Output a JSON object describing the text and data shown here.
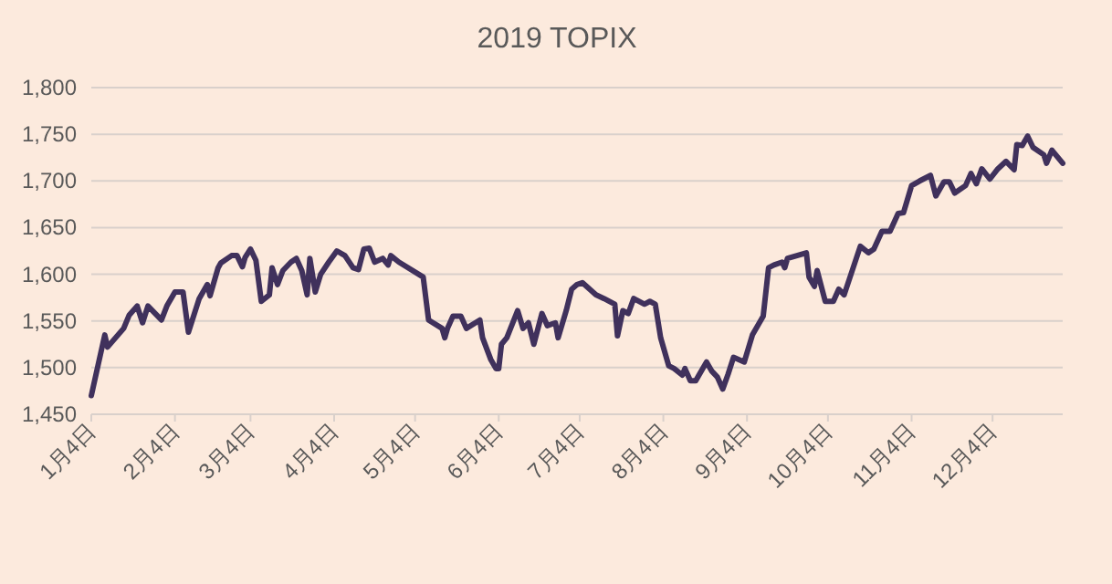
{
  "chart_data": {
    "type": "line",
    "title": "2019 TOPIX",
    "grid": "y",
    "marker": "none",
    "line_style": "solid",
    "xlim": [
      "2019-01-04",
      "2019-12-30"
    ],
    "ylim": [
      1450,
      1800
    ],
    "yticks": [
      {
        "value": 1450,
        "label": "1,450"
      },
      {
        "value": 1500,
        "label": "1,500"
      },
      {
        "value": 1550,
        "label": "1,550"
      },
      {
        "value": 1600,
        "label": "1,600"
      },
      {
        "value": 1650,
        "label": "1,650"
      },
      {
        "value": 1700,
        "label": "1,700"
      },
      {
        "value": 1750,
        "label": "1,750"
      },
      {
        "value": 1800,
        "label": "1,800"
      }
    ],
    "xticks": [
      {
        "value": "2019-01-04",
        "label": "1月4日"
      },
      {
        "value": "2019-02-04",
        "label": "2月4日"
      },
      {
        "value": "2019-03-04",
        "label": "3月4日"
      },
      {
        "value": "2019-04-04",
        "label": "4月4日"
      },
      {
        "value": "2019-05-04",
        "label": "5月4日"
      },
      {
        "value": "2019-06-04",
        "label": "6月4日"
      },
      {
        "value": "2019-07-04",
        "label": "7月4日"
      },
      {
        "value": "2019-08-04",
        "label": "8月4日"
      },
      {
        "value": "2019-09-04",
        "label": "9月4日"
      },
      {
        "value": "2019-10-04",
        "label": "10月4日"
      },
      {
        "value": "2019-11-04",
        "label": "11月4日"
      },
      {
        "value": "2019-12-04",
        "label": "12月4日"
      }
    ],
    "x": [
      "2019-01-04",
      "2019-01-07",
      "2019-01-09",
      "2019-01-10",
      "2019-01-13",
      "2019-01-16",
      "2019-01-18",
      "2019-01-21",
      "2019-01-23",
      "2019-01-25",
      "2019-01-30",
      "2019-02-01",
      "2019-02-04",
      "2019-02-07",
      "2019-02-09",
      "2019-02-13",
      "2019-02-16",
      "2019-02-17",
      "2019-02-20",
      "2019-02-21",
      "2019-02-25",
      "2019-02-27",
      "2019-03-01",
      "2019-03-02",
      "2019-03-04",
      "2019-03-06",
      "2019-03-08",
      "2019-03-11",
      "2019-03-12",
      "2019-03-14",
      "2019-03-16",
      "2019-03-19",
      "2019-03-21",
      "2019-03-23",
      "2019-03-25",
      "2019-03-26",
      "2019-03-28",
      "2019-03-30",
      "2019-04-02",
      "2019-04-05",
      "2019-04-08",
      "2019-04-11",
      "2019-04-13",
      "2019-04-15",
      "2019-04-17",
      "2019-04-19",
      "2019-04-22",
      "2019-04-24",
      "2019-04-25",
      "2019-04-28",
      "2019-05-07",
      "2019-05-09",
      "2019-05-14",
      "2019-05-15",
      "2019-05-16",
      "2019-05-18",
      "2019-05-21",
      "2019-05-23",
      "2019-05-28",
      "2019-05-29",
      "2019-06-01",
      "2019-06-03",
      "2019-06-04",
      "2019-06-05",
      "2019-06-07",
      "2019-06-11",
      "2019-06-13",
      "2019-06-15",
      "2019-06-17",
      "2019-06-20",
      "2019-06-22",
      "2019-06-25",
      "2019-06-26",
      "2019-06-29",
      "2019-07-01",
      "2019-07-03",
      "2019-07-05",
      "2019-07-10",
      "2019-07-13",
      "2019-07-17",
      "2019-07-18",
      "2019-07-20",
      "2019-07-22",
      "2019-07-24",
      "2019-07-28",
      "2019-07-30",
      "2019-08-01",
      "2019-08-03",
      "2019-08-06",
      "2019-08-08",
      "2019-08-11",
      "2019-08-12",
      "2019-08-14",
      "2019-08-16",
      "2019-08-20",
      "2019-08-22",
      "2019-08-24",
      "2019-08-26",
      "2019-08-28",
      "2019-08-30",
      "2019-09-03",
      "2019-09-06",
      "2019-09-10",
      "2019-09-12",
      "2019-09-14",
      "2019-09-17",
      "2019-09-18",
      "2019-09-19",
      "2019-09-26",
      "2019-09-27",
      "2019-09-29",
      "2019-09-30",
      "2019-10-03",
      "2019-10-06",
      "2019-10-08",
      "2019-10-10",
      "2019-10-16",
      "2019-10-19",
      "2019-10-21",
      "2019-10-24",
      "2019-10-27",
      "2019-10-30",
      "2019-11-01",
      "2019-11-04",
      "2019-11-07",
      "2019-11-11",
      "2019-11-13",
      "2019-11-16",
      "2019-11-18",
      "2019-11-20",
      "2019-11-24",
      "2019-11-26",
      "2019-11-28",
      "2019-11-30",
      "2019-12-03",
      "2019-12-06",
      "2019-12-09",
      "2019-12-12",
      "2019-12-13",
      "2019-12-15",
      "2019-12-17",
      "2019-12-19",
      "2019-12-23",
      "2019-12-24",
      "2019-12-26",
      "2019-12-30"
    ],
    "series": [
      {
        "color": "#40315c",
        "values": [
          1470,
          1509,
          1535,
          1522,
          1532,
          1542,
          1556,
          1566,
          1548,
          1566,
          1551,
          1566,
          1581,
          1581,
          1538,
          1574,
          1589,
          1577,
          1607,
          1612,
          1620,
          1620,
          1608,
          1618,
          1627,
          1615,
          1571,
          1578,
          1607,
          1589,
          1604,
          1613,
          1617,
          1604,
          1578,
          1617,
          1581,
          1600,
          1613,
          1625,
          1620,
          1607,
          1605,
          1627,
          1628,
          1613,
          1617,
          1610,
          1620,
          1613,
          1597,
          1551,
          1542,
          1532,
          1542,
          1555,
          1555,
          1542,
          1551,
          1532,
          1509,
          1499,
          1499,
          1525,
          1532,
          1561,
          1542,
          1548,
          1525,
          1558,
          1545,
          1548,
          1532,
          1561,
          1584,
          1589,
          1591,
          1578,
          1574,
          1568,
          1534,
          1561,
          1558,
          1574,
          1568,
          1571,
          1568,
          1532,
          1502,
          1499,
          1492,
          1499,
          1486,
          1486,
          1506,
          1496,
          1490,
          1477,
          1493,
          1511,
          1506,
          1535,
          1555,
          1607,
          1610,
          1613,
          1607,
          1617,
          1623,
          1597,
          1587,
          1604,
          1571,
          1571,
          1584,
          1578,
          1630,
          1623,
          1627,
          1646,
          1646,
          1665,
          1666,
          1695,
          1700,
          1706,
          1684,
          1699,
          1699,
          1687,
          1695,
          1708,
          1697,
          1713,
          1702,
          1713,
          1721,
          1712,
          1739,
          1738,
          1748,
          1736,
          1728,
          1719,
          1733,
          1719
        ]
      }
    ]
  }
}
